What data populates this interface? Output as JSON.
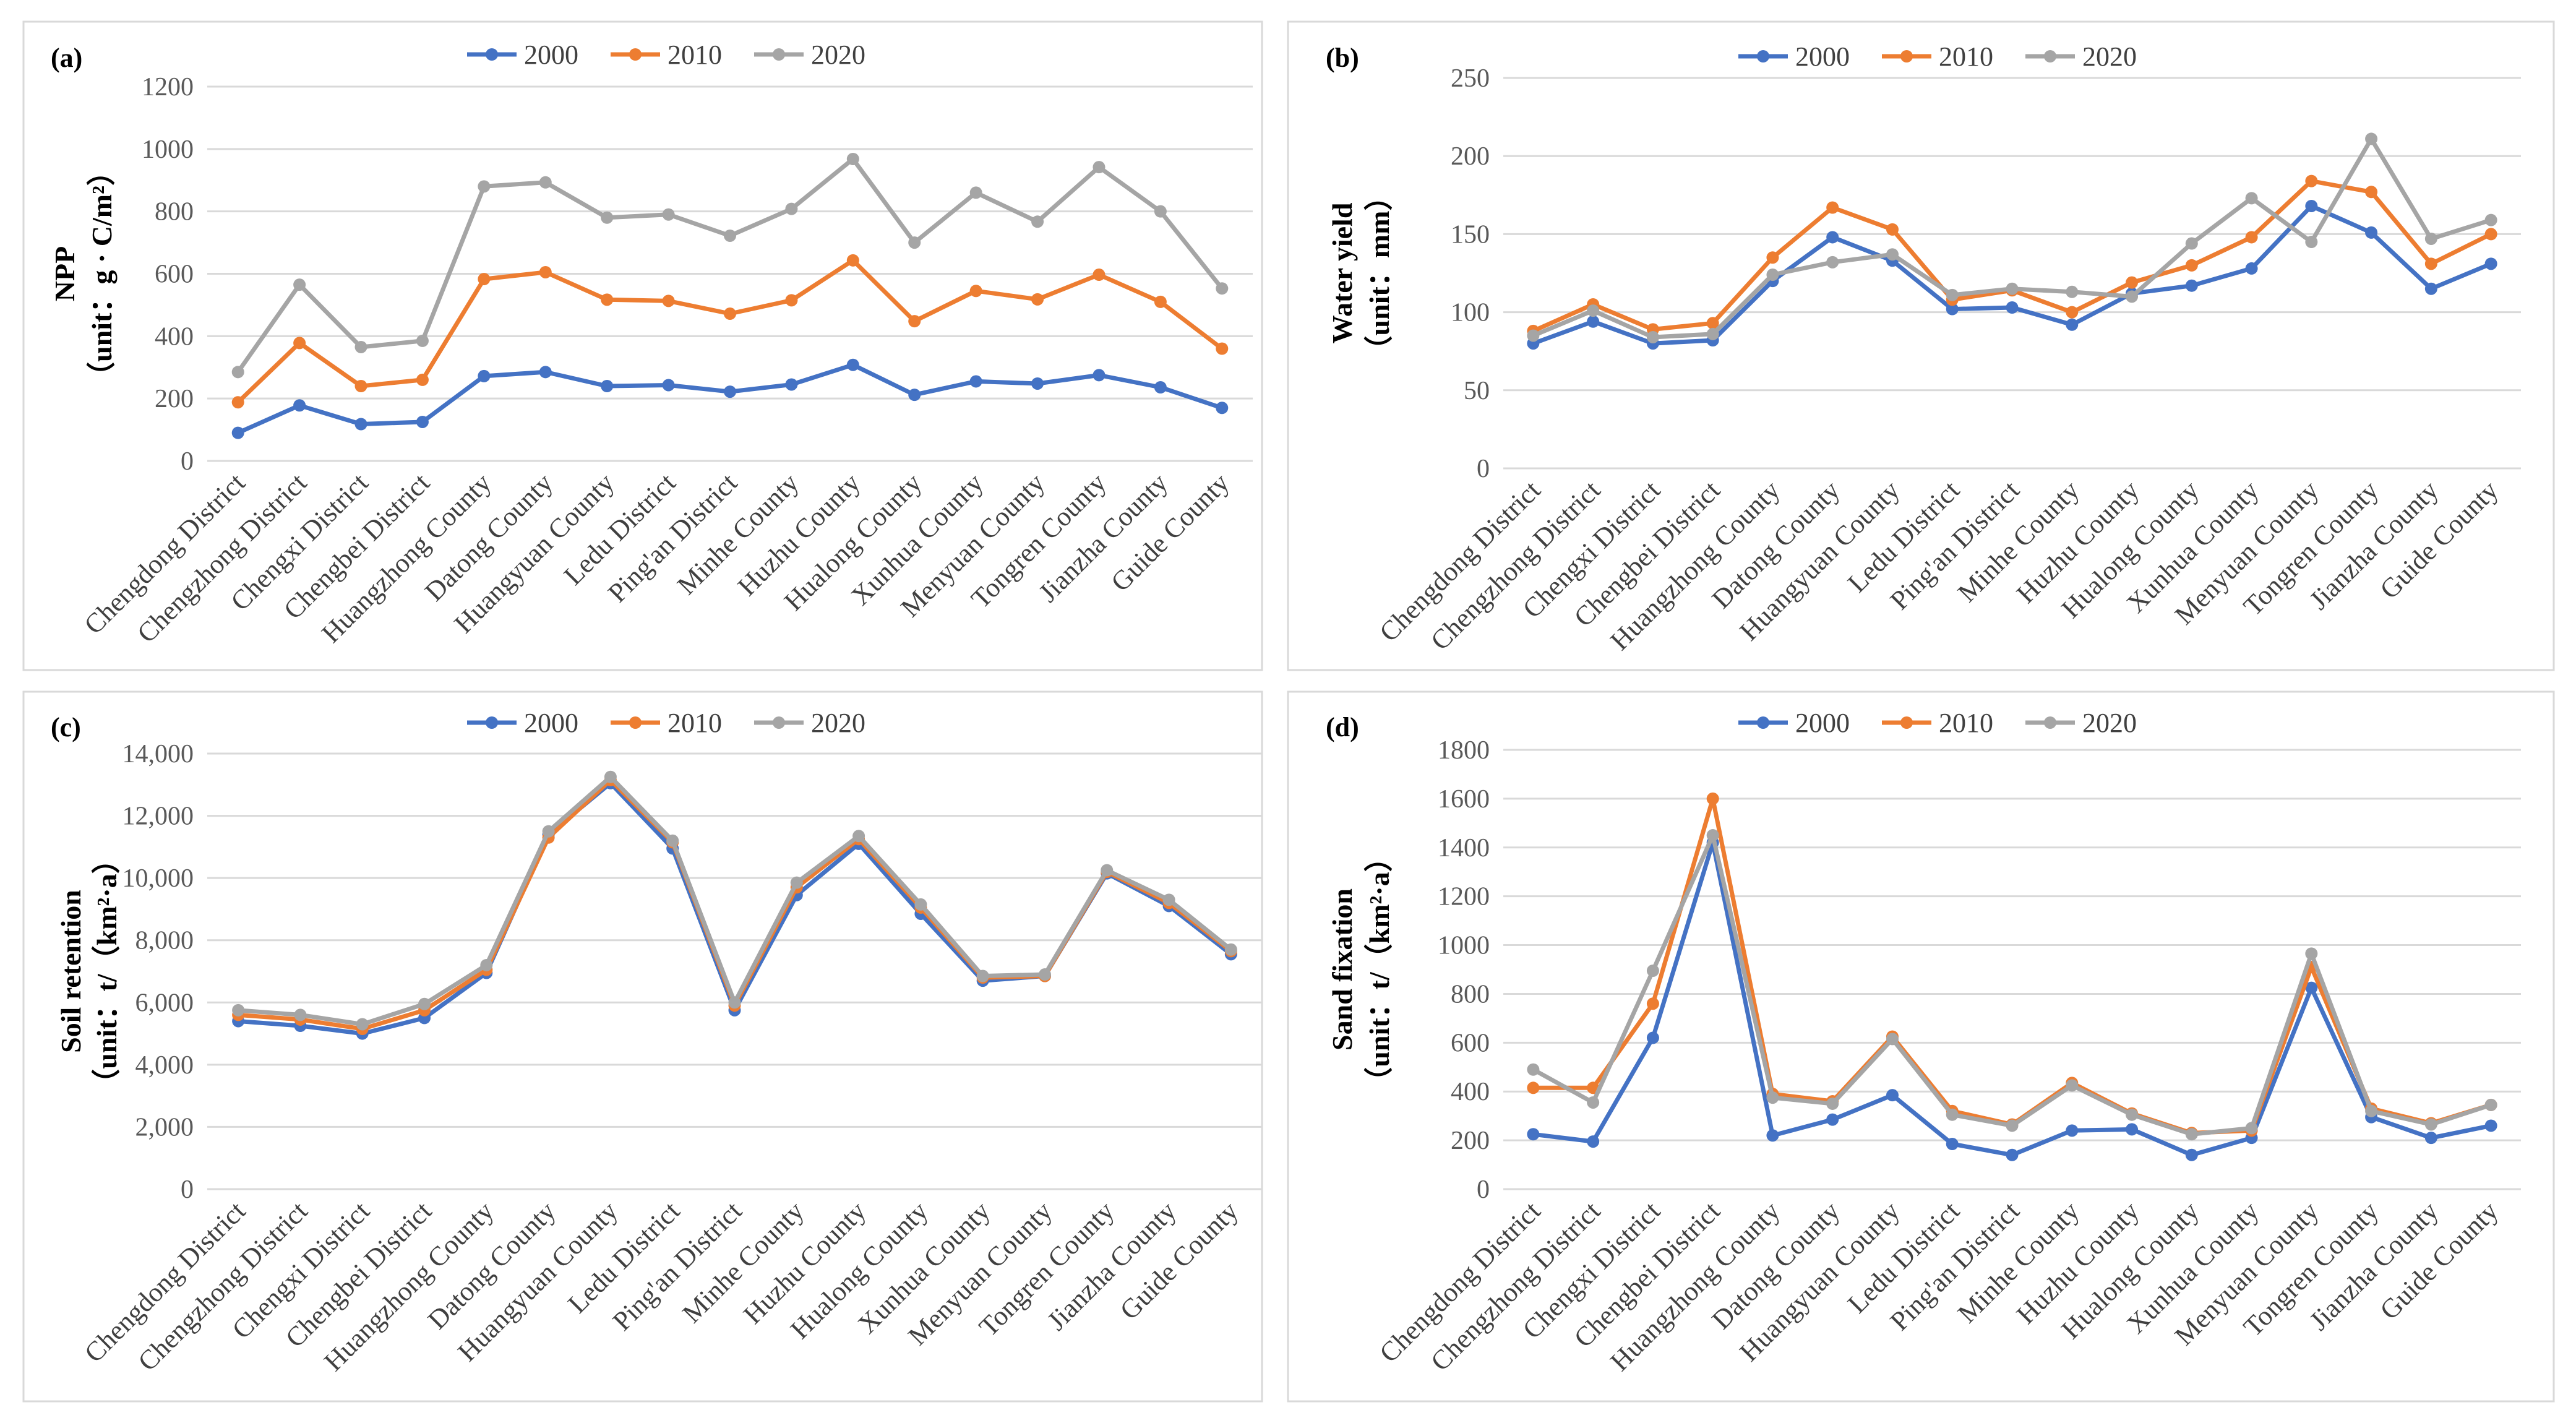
{
  "colors": {
    "2000": "#4472c4",
    "2010": "#ed7d31",
    "2020": "#a5a5a5"
  },
  "chart_data": [
    {
      "type": "line",
      "panel_label": "(a)",
      "ylabel": "NPP",
      "yunit": "（unit：g · C/m²）",
      "ylim": [
        0,
        1200
      ],
      "yticks": [
        "0",
        "200",
        "400",
        "600",
        "800",
        "1000",
        "1200"
      ],
      "categories": [
        "Chengdong District",
        "Chengzhong District",
        "Chengxi District",
        "Chengbei District",
        "Huangzhong County",
        "Datong County",
        "Huangyuan County",
        "Ledu District",
        "Ping'an District",
        "Minhe County",
        "Huzhu County",
        "Hualong County",
        "Xunhua County",
        "Menyuan County",
        "Tongren County",
        "Jianzha County",
        "Guide County"
      ],
      "series": [
        {
          "name": "2000",
          "values": [
            90,
            178,
            118,
            125,
            272,
            285,
            240,
            243,
            222,
            245,
            308,
            212,
            255,
            248,
            275,
            236,
            170
          ]
        },
        {
          "name": "2010",
          "values": [
            188,
            378,
            240,
            260,
            583,
            605,
            517,
            513,
            472,
            515,
            643,
            448,
            545,
            518,
            597,
            510,
            360
          ]
        },
        {
          "name": "2020",
          "values": [
            285,
            565,
            365,
            385,
            880,
            893,
            780,
            790,
            722,
            808,
            968,
            700,
            860,
            767,
            942,
            800,
            553
          ]
        }
      ]
    },
    {
      "type": "line",
      "panel_label": "(b)",
      "ylabel": "Water yield",
      "yunit": "（unit：mm）",
      "ylim": [
        0,
        250
      ],
      "yticks": [
        "0",
        "50",
        "100",
        "150",
        "200",
        "250"
      ],
      "categories": [
        "Chengdong District",
        "Chengzhong District",
        "Chengxi District",
        "Chengbei District",
        "Huangzhong County",
        "Datong County",
        "Huangyuan County",
        "Ledu District",
        "Ping'an District",
        "Minhe County",
        "Huzhu County",
        "Hualong County",
        "Xunhua County",
        "Menyuan County",
        "Tongren County",
        "Jianzha County",
        "Guide County"
      ],
      "series": [
        {
          "name": "2000",
          "values": [
            80,
            94,
            80,
            82,
            120,
            148,
            133,
            102,
            103,
            92,
            112,
            117,
            128,
            168,
            151,
            115,
            131
          ]
        },
        {
          "name": "2010",
          "values": [
            88,
            105,
            89,
            93,
            135,
            167,
            153,
            108,
            114,
            100,
            119,
            130,
            148,
            184,
            177,
            131,
            150
          ]
        },
        {
          "name": "2020",
          "values": [
            85,
            101,
            84,
            86,
            124,
            132,
            137,
            111,
            115,
            113,
            110,
            144,
            173,
            145,
            211,
            147,
            159
          ]
        }
      ]
    },
    {
      "type": "line",
      "panel_label": "(c)",
      "ylabel": "Soil retention",
      "yunit": "（unit：t/（km²·a）",
      "ylim": [
        0,
        14000
      ],
      "yticks": [
        "0",
        "2,000",
        "4,000",
        "6,000",
        "8,000",
        "10,000",
        "12,000",
        "14,000"
      ],
      "categories": [
        "Chengdong District",
        "Chengzhong District",
        "Chengxi District",
        "Chengbei District",
        "Huangzhong County",
        "Datong County",
        "Huangyuan County",
        "Ledu District",
        "Ping'an District",
        "Minhe County",
        "Huzhu County",
        "Hualong County",
        "Xunhua County",
        "Menyuan County",
        "Tongren County",
        "Jianzha County",
        "Guide County"
      ],
      "series": [
        {
          "name": "2000",
          "values": [
            5400,
            5250,
            5000,
            5500,
            6950,
            11400,
            13050,
            10950,
            5750,
            9450,
            11100,
            8850,
            6700,
            6850,
            10150,
            9100,
            7550
          ]
        },
        {
          "name": "2010",
          "values": [
            5600,
            5450,
            5150,
            5750,
            7050,
            11300,
            13150,
            11150,
            5900,
            9700,
            11250,
            9050,
            6800,
            6850,
            10200,
            9200,
            7650
          ]
        },
        {
          "name": "2020",
          "values": [
            5750,
            5600,
            5300,
            5950,
            7200,
            11500,
            13250,
            11200,
            6000,
            9850,
            11350,
            9150,
            6850,
            6900,
            10250,
            9300,
            7700
          ]
        }
      ]
    },
    {
      "type": "line",
      "panel_label": "(d)",
      "ylabel": "Sand fixation",
      "yunit": "（unit：t/（km²·a）",
      "ylim": [
        0,
        1800
      ],
      "yticks": [
        "0",
        "200",
        "400",
        "600",
        "800",
        "1000",
        "1200",
        "1400",
        "1600",
        "1800"
      ],
      "categories": [
        "Chengdong District",
        "Chengzhong District",
        "Chengxi District",
        "Chengbei District",
        "Huangzhong County",
        "Datong County",
        "Huangyuan County",
        "Ledu District",
        "Ping'an District",
        "Minhe County",
        "Huzhu County",
        "Hualong County",
        "Xunhua County",
        "Menyuan County",
        "Tongren County",
        "Jianzha County",
        "Guide County"
      ],
      "series": [
        {
          "name": "2000",
          "values": [
            225,
            195,
            620,
            1420,
            220,
            285,
            385,
            185,
            140,
            240,
            245,
            140,
            210,
            825,
            295,
            210,
            260
          ]
        },
        {
          "name": "2010",
          "values": [
            415,
            415,
            760,
            1600,
            390,
            360,
            625,
            320,
            265,
            435,
            310,
            230,
            240,
            910,
            330,
            270,
            345
          ]
        },
        {
          "name": "2020",
          "values": [
            490,
            355,
            895,
            1450,
            375,
            350,
            615,
            305,
            260,
            425,
            305,
            225,
            250,
            965,
            320,
            265,
            345
          ]
        }
      ]
    }
  ]
}
